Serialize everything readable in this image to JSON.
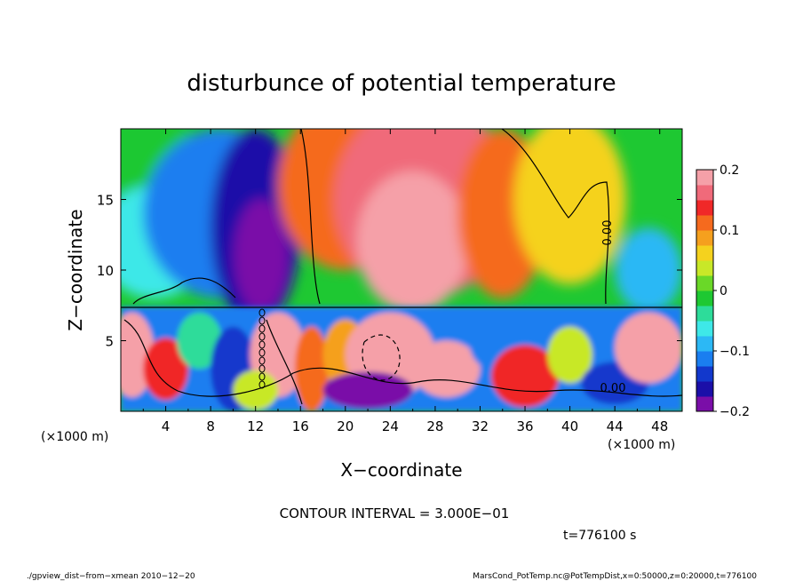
{
  "chart_data": {
    "type": "heatmap",
    "title": "disturbunce of potential temperature",
    "xlabel": "X−coordinate",
    "ylabel": "Z−coordinate",
    "x_unit_left": "(×1000 m)",
    "x_unit_right": "(×1000 m)",
    "xlim": [
      0,
      50
    ],
    "ylim": [
      0,
      20
    ],
    "x_ticks": [
      "4",
      "8",
      "12",
      "16",
      "20",
      "24",
      "28",
      "32",
      "36",
      "40",
      "44",
      "48"
    ],
    "y_ticks": [
      "5",
      "10",
      "15"
    ],
    "colorbar": {
      "range": [
        -0.2,
        0.2
      ],
      "tick_labels": [
        "0.2",
        "0.1",
        "0",
        "−0.1",
        "−0.2"
      ],
      "colors": [
        "#7a0ea8",
        "#1b0fa8",
        "#1238cc",
        "#1a7ef0",
        "#2cb8f5",
        "#3ee8e8",
        "#2ddc9a",
        "#1ec832",
        "#6ad828",
        "#c8e828",
        "#f5d21e",
        "#f5a01e",
        "#f56a1e",
        "#f02828",
        "#f06a7a",
        "#f5a0a8"
      ]
    },
    "contour_labels": [
      "0.00",
      "0.00"
    ],
    "contour_interval_text": "CONTOUR INTERVAL = 3.000E−01",
    "time_text": "t=776100 s"
  },
  "footer": {
    "left": "./gpview_dist−from−xmean  2010−12−20",
    "right": "MarsCond_PotTemp.nc@PotTempDist,x=0:50000,z=0:20000,t=776100"
  }
}
